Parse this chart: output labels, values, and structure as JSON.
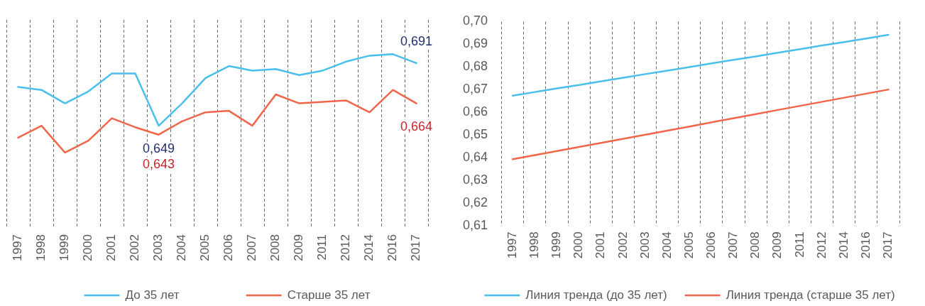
{
  "chart_data": [
    {
      "type": "line",
      "categories": [
        "1997",
        "1998",
        "1999",
        "2000",
        "2001",
        "2002",
        "2003",
        "2004",
        "2005",
        "2006",
        "2007",
        "2008",
        "2009",
        "2011",
        "2012",
        "2014",
        "2016",
        "2017"
      ],
      "series": [
        {
          "name": "До 35 лет",
          "color": "#4bbfec",
          "values": [
            0.675,
            0.673,
            0.664,
            0.672,
            0.684,
            0.684,
            0.649,
            0.664,
            0.681,
            0.689,
            0.686,
            0.687,
            0.683,
            0.686,
            0.692,
            0.696,
            0.697,
            0.691
          ],
          "value_labels": [
            null,
            null,
            null,
            null,
            null,
            null,
            "0,649",
            null,
            null,
            null,
            null,
            null,
            null,
            null,
            null,
            null,
            null,
            "0,691"
          ]
        },
        {
          "name": "Старше 35 лет",
          "color": "#f1664b",
          "values": [
            0.641,
            0.649,
            0.631,
            0.639,
            0.654,
            0.648,
            0.643,
            0.652,
            0.658,
            0.659,
            0.649,
            0.67,
            0.664,
            0.665,
            0.666,
            0.658,
            0.673,
            0.664
          ],
          "value_labels": [
            null,
            null,
            null,
            null,
            null,
            null,
            "0,643",
            null,
            null,
            null,
            null,
            null,
            null,
            null,
            null,
            null,
            null,
            "0,664"
          ]
        }
      ],
      "ylim": [
        0.58,
        0.72
      ],
      "tick_labels": "x",
      "grid": "x",
      "legend": "bottom"
    },
    {
      "type": "line",
      "categories": [
        "1997",
        "1998",
        "1999",
        "2000",
        "2001",
        "2002",
        "2003",
        "2004",
        "2005",
        "2006",
        "2007",
        "2008",
        "2009",
        "2011",
        "2012",
        "2014",
        "2016",
        "2017"
      ],
      "series": [
        {
          "name": "Линия тренда (до 35 лет)",
          "color": "#4bbfec",
          "values": [
            0.6674,
            0.669,
            0.6706,
            0.6721,
            0.6737,
            0.6753,
            0.6769,
            0.6784,
            0.68,
            0.6816,
            0.6832,
            0.6847,
            0.6863,
            0.6879,
            0.6895,
            0.691,
            0.6926,
            0.6942
          ]
        },
        {
          "name": "Линия тренда (старше 35 лет)",
          "color": "#f1664b",
          "values": [
            0.6394,
            0.6412,
            0.643,
            0.6448,
            0.6466,
            0.6484,
            0.6502,
            0.652,
            0.6538,
            0.6557,
            0.6575,
            0.6593,
            0.6611,
            0.6629,
            0.6647,
            0.6665,
            0.6683,
            0.6701
          ]
        }
      ],
      "ylim": [
        0.61,
        0.7
      ],
      "yticks": [
        {
          "value": 0.61,
          "label": "0,61"
        },
        {
          "value": 0.62,
          "label": "0,62"
        },
        {
          "value": 0.63,
          "label": "0,63"
        },
        {
          "value": 0.64,
          "label": "0,64"
        },
        {
          "value": 0.65,
          "label": "0,65"
        },
        {
          "value": 0.66,
          "label": "0,66"
        },
        {
          "value": 0.67,
          "label": "0,67"
        },
        {
          "value": 0.68,
          "label": "0,68"
        },
        {
          "value": 0.69,
          "label": "0,69"
        },
        {
          "value": 0.7,
          "label": "0,70"
        }
      ],
      "grid": "x",
      "legend": "bottom"
    }
  ]
}
